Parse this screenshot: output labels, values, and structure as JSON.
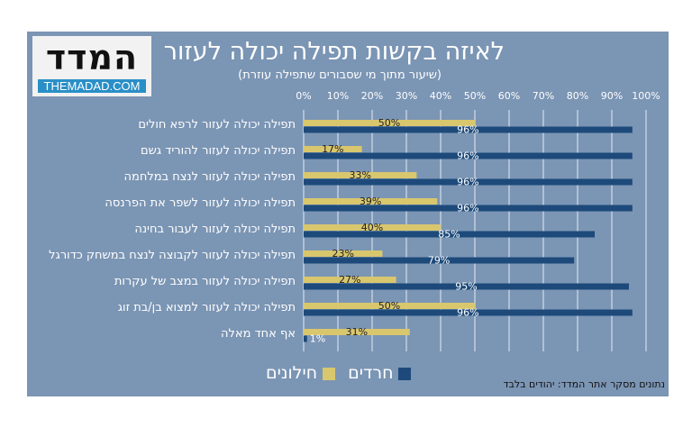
{
  "logo": {
    "hebrew": "המדד",
    "english": "THEMADAD.COM"
  },
  "chart_data": {
    "type": "bar",
    "orientation": "horizontal",
    "title": "לאיזה בקשות תפילה יכולה לעזור",
    "subtitle": "(שיעור מתוך מי שסבורים שתפילה עוזרת)",
    "xlim": [
      0,
      100
    ],
    "xticks": [
      "0%",
      "10%",
      "20%",
      "30%",
      "40%",
      "50%",
      "60%",
      "70%",
      "80%",
      "90%",
      "100%"
    ],
    "grid": true,
    "legend_position": "bottom",
    "categories": [
      "תפילה יכולה לעזור לרפא חולים",
      "תפילה יכולה לעזור להוריד גשם",
      "תפילה יכולה לעזור לנצח במלחמה",
      "תפילה יכולה לעזור לשפר את הפרנסה",
      "תפילה יכולה לעזור לעבור בחינה",
      "תפילה יכולה לעזור לקבוצה לנצח במשחק כדורגל",
      "תפילה יכולה לעזור במצב של עקרות",
      "תפילה יכולה לעזור למצוא בן/בת זוג",
      "אף אחד מאלה"
    ],
    "series": [
      {
        "name": "חילונים",
        "color": "#d9c76e",
        "values": [
          50,
          17,
          33,
          39,
          40,
          23,
          27,
          50,
          31
        ]
      },
      {
        "name": "חרדים",
        "color": "#1d4a7a",
        "values": [
          96,
          96,
          96,
          96,
          85,
          79,
          95,
          96,
          1
        ]
      }
    ],
    "source": "נתונים מסקר אתר המדד: יהודים בלבד"
  }
}
